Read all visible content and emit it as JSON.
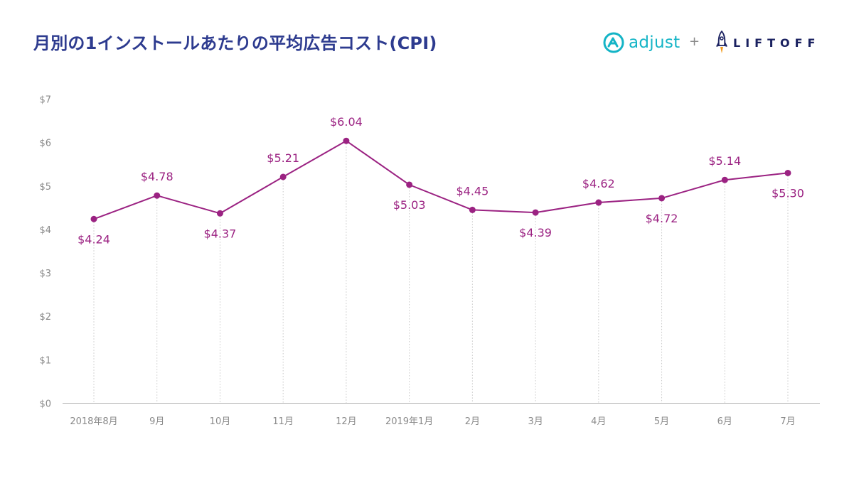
{
  "header": {
    "title": "月別の1インストールあたりの平均広告コスト(CPI)",
    "brand_left": "adjust",
    "plus": "+",
    "brand_right": "LIFTOFF"
  },
  "colors": {
    "title": "#2d3b8f",
    "line": "#9b2282",
    "adjust": "#14b4c6",
    "liftoff": "#1a2160",
    "axis_text": "#8a8a8a"
  },
  "icons": {
    "adjust": "adjust-a-icon",
    "liftoff": "rocket-icon"
  },
  "chart_data": {
    "type": "line",
    "categories": [
      "2018年8月",
      "9月",
      "10月",
      "11月",
      "12月",
      "2019年1月",
      "2月",
      "3月",
      "4月",
      "5月",
      "6月",
      "7月"
    ],
    "values": [
      4.24,
      4.78,
      4.37,
      5.21,
      6.04,
      5.03,
      4.45,
      4.39,
      4.62,
      4.72,
      5.14,
      5.3
    ],
    "data_labels": [
      "$4.24",
      "$4.78",
      "$4.37",
      "$5.21",
      "$6.04",
      "$5.03",
      "$4.45",
      "$4.39",
      "$4.62",
      "$4.72",
      "$5.14",
      "$5.30"
    ],
    "label_positions": [
      "below",
      "above",
      "below",
      "above",
      "above",
      "below",
      "above",
      "below",
      "above",
      "below",
      "above",
      "below"
    ],
    "y_ticks": [
      0,
      1,
      2,
      3,
      4,
      5,
      6,
      7
    ],
    "y_tick_labels": [
      "$0",
      "$1",
      "$2",
      "$3",
      "$4",
      "$5",
      "$6",
      "$7"
    ],
    "ylim": [
      0,
      7
    ],
    "grid": "vertical dotted lines at each point",
    "legend": "none"
  }
}
